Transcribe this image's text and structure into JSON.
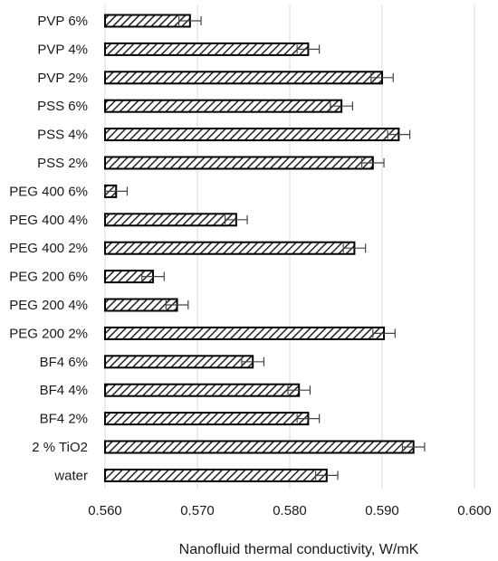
{
  "chart_data": {
    "type": "bar",
    "orientation": "horizontal",
    "title": "",
    "xlabel": "Nanofluid thermal conductivity, W/mK",
    "ylabel": "",
    "xlim": [
      0.56,
      0.6
    ],
    "xticks": [
      "0.560",
      "0.570",
      "0.580",
      "0.590",
      "0.600"
    ],
    "grid": "vertical major gridlines",
    "legend": "none",
    "bar_fill": "diagonal hatch",
    "colors": {
      "bar_stroke": "#000000",
      "hatch": "#222222",
      "grid": "#d9d9d9"
    },
    "categories": [
      "PVP 6%",
      "PVP 4%",
      "PVP 2%",
      "PSS 6%",
      "PSS 4%",
      "PSS 2%",
      "PEG 400 6%",
      "PEG 400 4%",
      "PEG 400 2%",
      "PEG 200 6%",
      "PEG 200 4%",
      "PEG 200 2%",
      "BF4 6%",
      "BF4 4%",
      "BF4 2%",
      "2 % TiO2",
      "water"
    ],
    "values": [
      0.5692,
      0.582,
      0.59,
      0.5856,
      0.5918,
      0.589,
      0.5612,
      0.5742,
      0.587,
      0.5652,
      0.5678,
      0.5902,
      0.576,
      0.581,
      0.582,
      0.5934,
      0.584
    ],
    "error": 0.0012
  }
}
